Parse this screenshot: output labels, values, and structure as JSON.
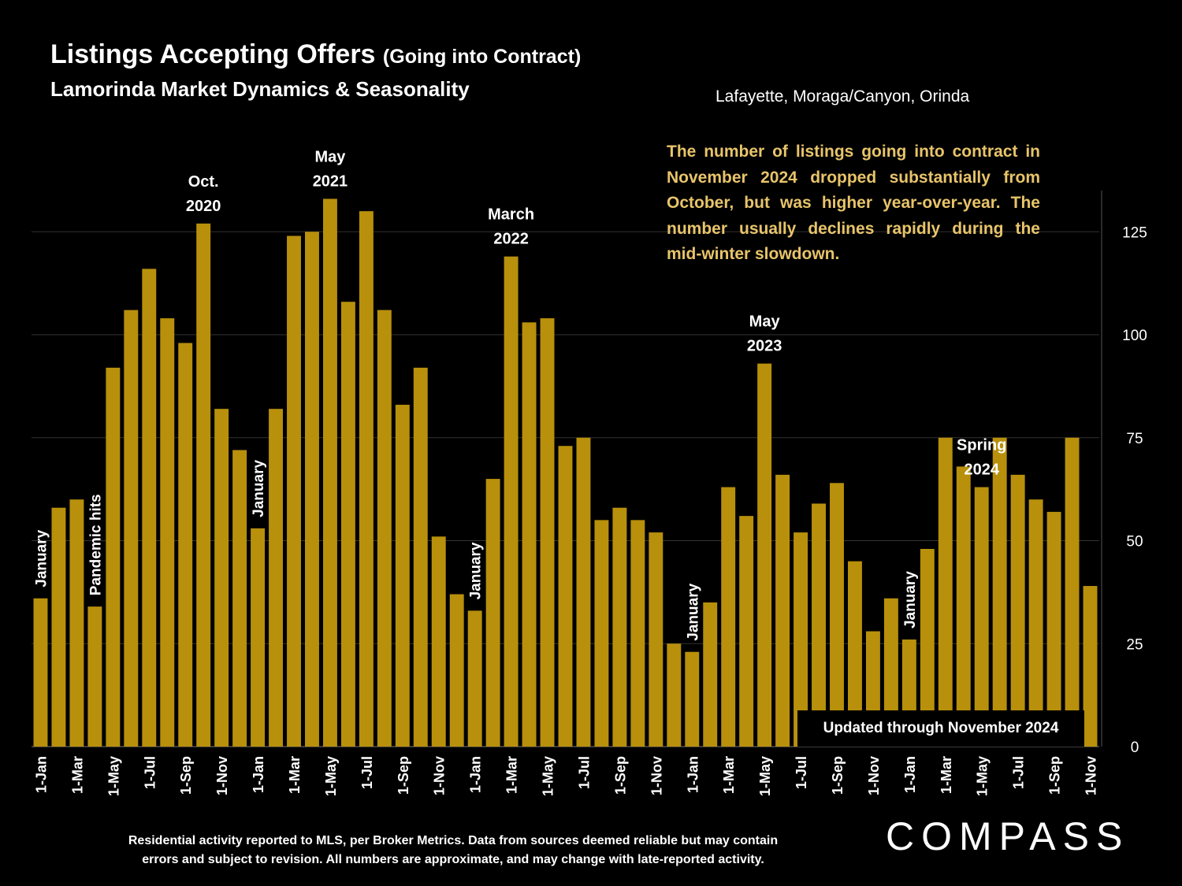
{
  "header": {
    "title_main": "Listings Accepting Offers",
    "title_paren": "(Going into Contract)",
    "subtitle": "Lamorinda Market Dynamics & Seasonality",
    "region": "Lafayette, Moraga/Canyon, Orinda"
  },
  "note": "The number of listings going into contract in November 2024 dropped substantially from October, but was higher year-over-year.  The number usually declines rapidly during the mid-winter slowdown.",
  "updated_label": "Updated through November 2024",
  "footer": {
    "line1": "Residential activity reported to MLS, per Broker Metrics. Data from sources deemed reliable but may contain",
    "line2": "errors and subject to revision. All numbers are approximate, and may change with late-reported activity."
  },
  "brand": "COMPASS",
  "colors": {
    "bar": "#b8900b",
    "note_text": "#e8c46a",
    "background": "#000000",
    "grid": "#333333"
  },
  "chart_data": {
    "type": "bar",
    "title": "Listings Accepting Offers (Going into Contract)",
    "ylim": [
      0,
      135
    ],
    "y_ticks": [
      0,
      25,
      50,
      75,
      100,
      125
    ],
    "grid": true,
    "x_labels_visible": [
      "1-Jan",
      "1-Mar",
      "1-May",
      "1-Jul",
      "1-Sep",
      "1-Nov",
      "1-Jan",
      "1-Mar",
      "1-May",
      "1-Jul",
      "1-Sep",
      "1-Nov",
      "1-Jan",
      "1-Mar",
      "1-May",
      "1-Jul",
      "1-Sep",
      "1-Nov",
      "1-Jan",
      "1-Mar",
      "1-May",
      "1-Jul",
      "1-Sep",
      "1-Nov",
      "1-Jan",
      "1-Mar",
      "1-May",
      "1-Jul",
      "1-Sep",
      "1-Nov"
    ],
    "categories": [
      "Jan 2020",
      "Feb 2020",
      "Mar 2020",
      "Apr 2020",
      "May 2020",
      "Jun 2020",
      "Jul 2020",
      "Aug 2020",
      "Sep 2020",
      "Oct 2020",
      "Nov 2020",
      "Dec 2020",
      "Jan 2021",
      "Feb 2021",
      "Mar 2021",
      "Apr 2021",
      "May 2021",
      "Jun 2021",
      "Jul 2021",
      "Aug 2021",
      "Sep 2021",
      "Oct 2021",
      "Nov 2021",
      "Dec 2021",
      "Jan 2022",
      "Feb 2022",
      "Mar 2022",
      "Apr 2022",
      "May 2022",
      "Jun 2022",
      "Jul 2022",
      "Aug 2022",
      "Sep 2022",
      "Oct 2022",
      "Nov 2022",
      "Dec 2022",
      "Jan 2023",
      "Feb 2023",
      "Mar 2023",
      "Apr 2023",
      "May 2023",
      "Jun 2023",
      "Jul 2023",
      "Aug 2023",
      "Sep 2023",
      "Oct 2023",
      "Nov 2023",
      "Dec 2023",
      "Jan 2024",
      "Feb 2024",
      "Mar 2024",
      "Apr 2024",
      "May 2024",
      "Jun 2024",
      "Jul 2024",
      "Aug 2024",
      "Sep 2024",
      "Oct 2024",
      "Nov 2024"
    ],
    "values": [
      36,
      58,
      60,
      34,
      92,
      106,
      116,
      104,
      98,
      127,
      82,
      72,
      53,
      82,
      124,
      125,
      133,
      108,
      130,
      106,
      83,
      92,
      51,
      37,
      33,
      65,
      119,
      103,
      104,
      73,
      75,
      55,
      58,
      55,
      52,
      25,
      23,
      35,
      63,
      56,
      93,
      66,
      52,
      59,
      64,
      45,
      28,
      36,
      26,
      48,
      75,
      68,
      63,
      75,
      66,
      60,
      57,
      75,
      39
    ],
    "annotations": [
      {
        "text": "January",
        "index": 0,
        "vertical": true
      },
      {
        "text": "Pandemic  hits",
        "index": 3,
        "vertical": true
      },
      {
        "text": "Oct.",
        "text2": "2020",
        "index": 9
      },
      {
        "text": "January",
        "index": 12,
        "vertical": true
      },
      {
        "text": "May",
        "text2": "2021",
        "index": 16
      },
      {
        "text": "January",
        "index": 24,
        "vertical": true
      },
      {
        "text": "March",
        "text2": "2022",
        "index": 26
      },
      {
        "text": "January",
        "index": 36,
        "vertical": true
      },
      {
        "text": "May",
        "text2": "2023",
        "index": 40
      },
      {
        "text": "January",
        "index": 48,
        "vertical": true
      },
      {
        "text": "Spring",
        "text2": "2024",
        "index": 52
      }
    ]
  }
}
